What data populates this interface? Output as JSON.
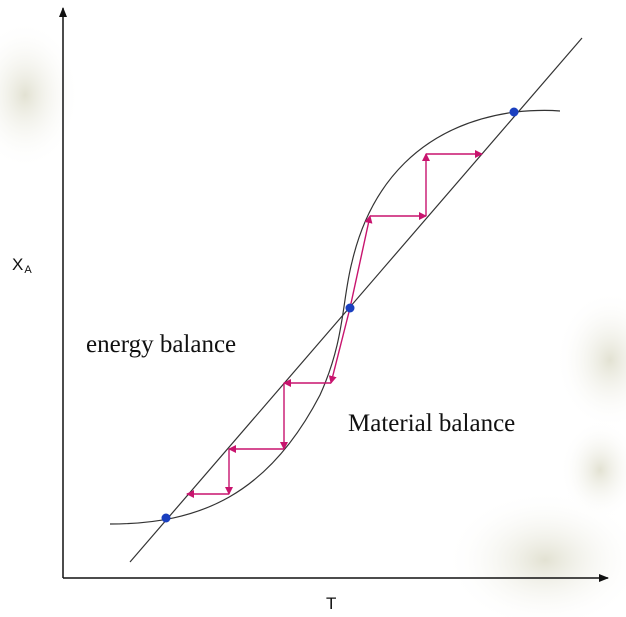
{
  "labels": {
    "y_axis_main": "X",
    "y_axis_sub": "A",
    "x_axis": "T",
    "energy_balance": "energy balance",
    "material_balance": "Material balance"
  },
  "colors": {
    "axis": "#111111",
    "curve": "#333333",
    "arrow": "#c8146e",
    "steady_state_point": "#1a3fbf"
  },
  "steady_states": [
    "low",
    "middle (unstable)",
    "high"
  ]
}
